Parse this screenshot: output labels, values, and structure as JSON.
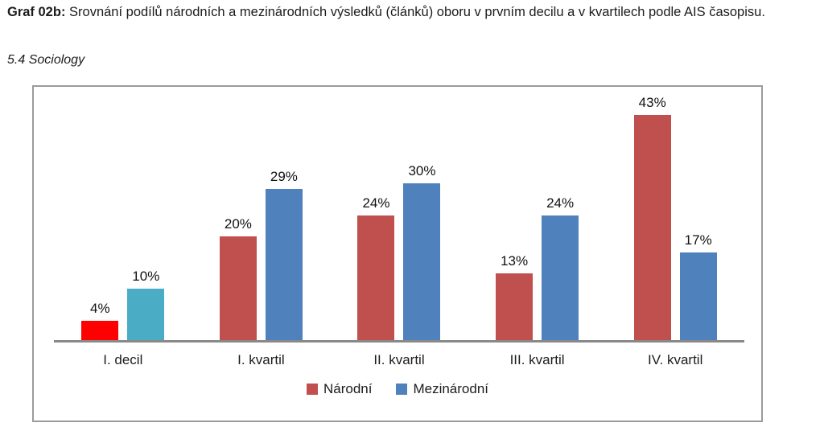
{
  "document": {
    "title_prefix": "Graf 02b:",
    "title_text": " Srovnání podílů národních a mezinárodních výsledků (článků) oboru v prvním decilu a v kvartilech podle AIS časopisu.",
    "section_label": "5.4 Sociology"
  },
  "chart_data": {
    "type": "bar",
    "title": "Graf 02b: Srovnání podílů národních a mezinárodních výsledků (článků) oboru v prvním decilu a v kvartilech podle AIS časopisu.",
    "subtitle": "5.4 Sociology",
    "categories": [
      "I. decil",
      "I. kvartil",
      "II. kvartil",
      "III. kvartil",
      "IV. kvartil"
    ],
    "series": [
      {
        "name": "Národní",
        "color": "#C0504D",
        "point_colors": [
          "#FE0000",
          null,
          null,
          null,
          null
        ],
        "values": [
          4,
          20,
          24,
          13,
          43
        ]
      },
      {
        "name": "Mezinárodní",
        "color": "#4F81BD",
        "point_colors": [
          "#4BACC6",
          null,
          null,
          null,
          null
        ],
        "values": [
          10,
          29,
          30,
          24,
          17
        ]
      }
    ],
    "value_suffix": "%",
    "data_labels": true,
    "ylim": [
      0,
      48
    ],
    "grid": false,
    "y_axis_visible": false,
    "legend_position": "bottom",
    "axis_color": "#898989",
    "frame_color": "#9b9b9b"
  }
}
